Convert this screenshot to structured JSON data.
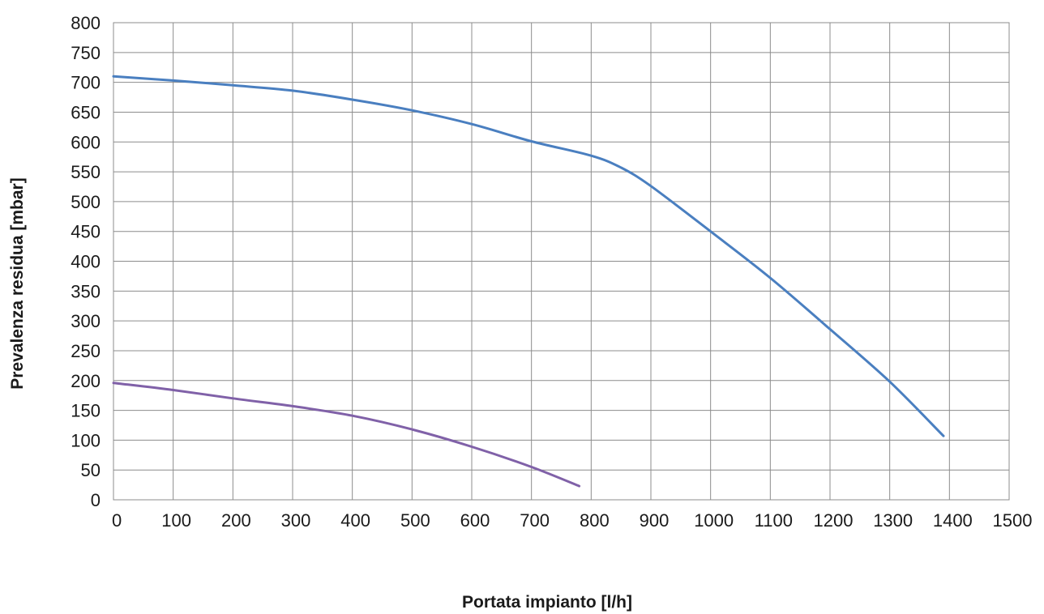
{
  "chart_data": {
    "type": "line",
    "title": "",
    "xlabel": "Portata impianto [l/h]",
    "ylabel": "Prevalenza residua  [mbar]",
    "xlim": [
      0,
      1500
    ],
    "ylim": [
      0,
      800
    ],
    "x_ticks": [
      0,
      100,
      200,
      300,
      400,
      500,
      600,
      700,
      800,
      900,
      1000,
      1100,
      1200,
      1300,
      1400,
      1500
    ],
    "y_ticks": [
      0,
      50,
      100,
      150,
      200,
      250,
      300,
      350,
      400,
      450,
      500,
      550,
      600,
      650,
      700,
      750,
      800
    ],
    "grid": true,
    "legend": "none",
    "series": [
      {
        "color": "#4a7fc0",
        "points": [
          [
            0,
            710
          ],
          [
            100,
            703
          ],
          [
            200,
            695
          ],
          [
            300,
            686
          ],
          [
            400,
            671
          ],
          [
            500,
            653
          ],
          [
            600,
            630
          ],
          [
            700,
            601
          ],
          [
            800,
            577
          ],
          [
            850,
            557
          ],
          [
            900,
            526
          ],
          [
            1000,
            450
          ],
          [
            1100,
            372
          ],
          [
            1200,
            286
          ],
          [
            1300,
            198
          ],
          [
            1390,
            107
          ]
        ]
      },
      {
        "color": "#8061a8",
        "points": [
          [
            0,
            196
          ],
          [
            100,
            184
          ],
          [
            200,
            170
          ],
          [
            300,
            157
          ],
          [
            400,
            141
          ],
          [
            500,
            118
          ],
          [
            600,
            89
          ],
          [
            700,
            55
          ],
          [
            780,
            23
          ]
        ]
      }
    ]
  }
}
